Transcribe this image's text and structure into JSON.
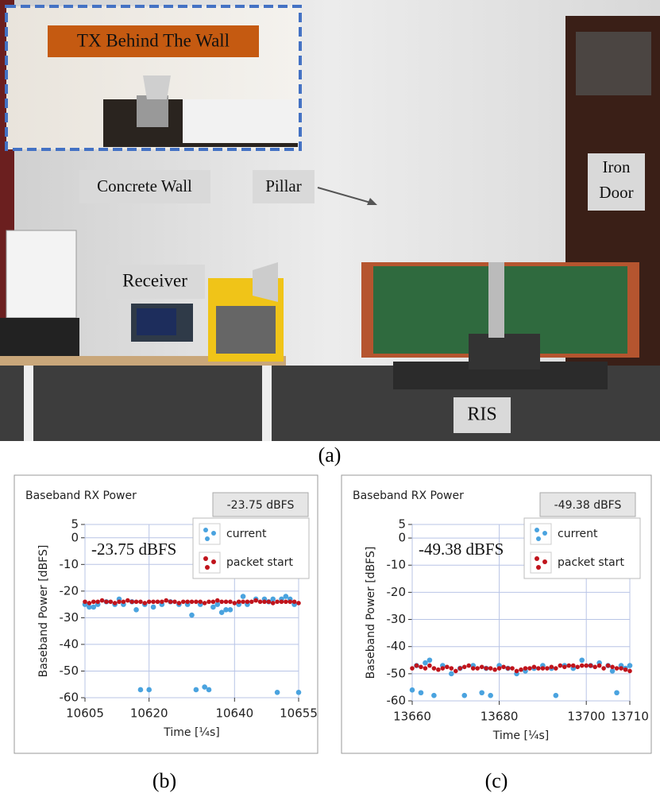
{
  "photo": {
    "inset_label": "TX Behind The Wall",
    "concrete_wall": "Concrete Wall",
    "pillar": "Pillar",
    "iron_door": [
      "Iron",
      "Door"
    ],
    "receiver": "Receiver",
    "ris": "RIS"
  },
  "captions": [
    "(a)",
    "(b)",
    "(c)"
  ],
  "chart_data": [
    {
      "type": "scatter",
      "title": "Baseband RX Power",
      "readout": "-23.75 dBFS",
      "annotation": "-23.75 dBFS",
      "y_label": "Baseband Power [dBFS]",
      "x_label": "Time [¼s]",
      "xlim": [
        10605,
        10655
      ],
      "ylim": [
        -60,
        5
      ],
      "xticks": [
        10605,
        10620,
        10640,
        10655
      ],
      "yticks": [
        5,
        0,
        -10,
        -20,
        -30,
        -40,
        -50,
        -60
      ],
      "grid": true,
      "series": [
        {
          "name": "current",
          "color": "#4aa3df",
          "x": [
            10605,
            10606,
            10607,
            10608,
            10610,
            10612,
            10613,
            10614,
            10616,
            10617,
            10618,
            10619,
            10620,
            10621,
            10623,
            10625,
            10627,
            10629,
            10630,
            10631,
            10632,
            10633,
            10634,
            10635,
            10636,
            10637,
            10638,
            10639,
            10641,
            10642,
            10643,
            10645,
            10647,
            10648,
            10649,
            10650,
            10651,
            10652,
            10653,
            10654,
            10655
          ],
          "values": [
            -25,
            -26,
            -26,
            -25,
            -24,
            -25,
            -23,
            -25,
            -24,
            -27,
            -57,
            -25,
            -57,
            -26,
            -25,
            -24,
            -25,
            -25,
            -29,
            -57,
            -25,
            -56,
            -57,
            -26,
            -25,
            -28,
            -27,
            -27,
            -25,
            -22,
            -25,
            -23,
            -23,
            -24,
            -23,
            -58,
            -23,
            -22,
            -23,
            -25,
            -58
          ]
        },
        {
          "name": "packet start",
          "color": "#c0141c",
          "x": [
            10605,
            10606,
            10607,
            10608,
            10609,
            10610,
            10611,
            10612,
            10613,
            10614,
            10615,
            10616,
            10617,
            10618,
            10619,
            10620,
            10621,
            10622,
            10623,
            10624,
            10625,
            10626,
            10627,
            10628,
            10629,
            10630,
            10631,
            10632,
            10633,
            10634,
            10635,
            10636,
            10637,
            10638,
            10639,
            10640,
            10641,
            10642,
            10643,
            10644,
            10645,
            10646,
            10647,
            10648,
            10649,
            10650,
            10651,
            10652,
            10653,
            10654,
            10655
          ],
          "values": [
            -24,
            -24.5,
            -24,
            -24,
            -23.5,
            -24,
            -24,
            -24.5,
            -24,
            -24,
            -23.5,
            -24,
            -24,
            -24,
            -24.5,
            -24,
            -24,
            -24,
            -24,
            -23.5,
            -24,
            -24,
            -24.5,
            -24,
            -24,
            -24,
            -24,
            -24,
            -24.5,
            -24,
            -24,
            -23.5,
            -24,
            -24,
            -24,
            -24.5,
            -24,
            -24,
            -24,
            -24,
            -23.5,
            -24,
            -24,
            -24,
            -24.5,
            -24,
            -24,
            -24,
            -24,
            -24,
            -24.5
          ]
        }
      ]
    },
    {
      "type": "scatter",
      "title": "Baseband RX Power",
      "readout": "-49.38 dBFS",
      "annotation": "-49.38 dBFS",
      "y_label": "Baseband Power [dBFS]",
      "x_label": "Time [¼s]",
      "xlim": [
        13660,
        13710
      ],
      "ylim": [
        -60,
        5
      ],
      "xticks": [
        13660,
        13680,
        13700,
        13710
      ],
      "yticks": [
        5,
        0,
        -10,
        -20,
        -30,
        -40,
        -50,
        -60
      ],
      "grid": true,
      "series": [
        {
          "name": "current",
          "color": "#4aa3df",
          "x": [
            13660,
            13661,
            13662,
            13663,
            13664,
            13665,
            13667,
            13669,
            13671,
            13672,
            13674,
            13676,
            13677,
            13678,
            13680,
            13682,
            13684,
            13686,
            13688,
            13690,
            13692,
            13693,
            13695,
            13697,
            13699,
            13701,
            13703,
            13705,
            13706,
            13707,
            13708,
            13709,
            13710
          ],
          "values": [
            -56,
            -47,
            -57,
            -46,
            -45,
            -58,
            -47,
            -50,
            -48,
            -58,
            -47,
            -57,
            -48,
            -58,
            -47,
            -48,
            -50,
            -49,
            -48,
            -47,
            -48,
            -58,
            -47,
            -48,
            -45,
            -47,
            -46,
            -47,
            -49,
            -57,
            -47,
            -48,
            -47
          ]
        },
        {
          "name": "packet start",
          "color": "#c0141c",
          "x": [
            13660,
            13661,
            13662,
            13663,
            13664,
            13665,
            13666,
            13667,
            13668,
            13669,
            13670,
            13671,
            13672,
            13673,
            13674,
            13675,
            13676,
            13677,
            13678,
            13679,
            13680,
            13681,
            13682,
            13683,
            13684,
            13685,
            13686,
            13687,
            13688,
            13689,
            13690,
            13691,
            13692,
            13693,
            13694,
            13695,
            13696,
            13697,
            13698,
            13699,
            13700,
            13701,
            13702,
            13703,
            13704,
            13705,
            13706,
            13707,
            13708,
            13709,
            13710
          ],
          "values": [
            -48,
            -47,
            -47.5,
            -48,
            -47,
            -48,
            -48.5,
            -48,
            -47.5,
            -48,
            -49,
            -48,
            -47.5,
            -47,
            -48,
            -48,
            -47.5,
            -48,
            -48,
            -48.5,
            -48,
            -47.5,
            -48,
            -48,
            -49,
            -48.5,
            -48,
            -48,
            -47.5,
            -48,
            -48,
            -48,
            -47.5,
            -48,
            -47,
            -47.5,
            -47,
            -47,
            -47.5,
            -47,
            -47,
            -47,
            -47.5,
            -47,
            -48,
            -47,
            -47.5,
            -48,
            -48,
            -48.5,
            -49
          ]
        }
      ]
    }
  ]
}
